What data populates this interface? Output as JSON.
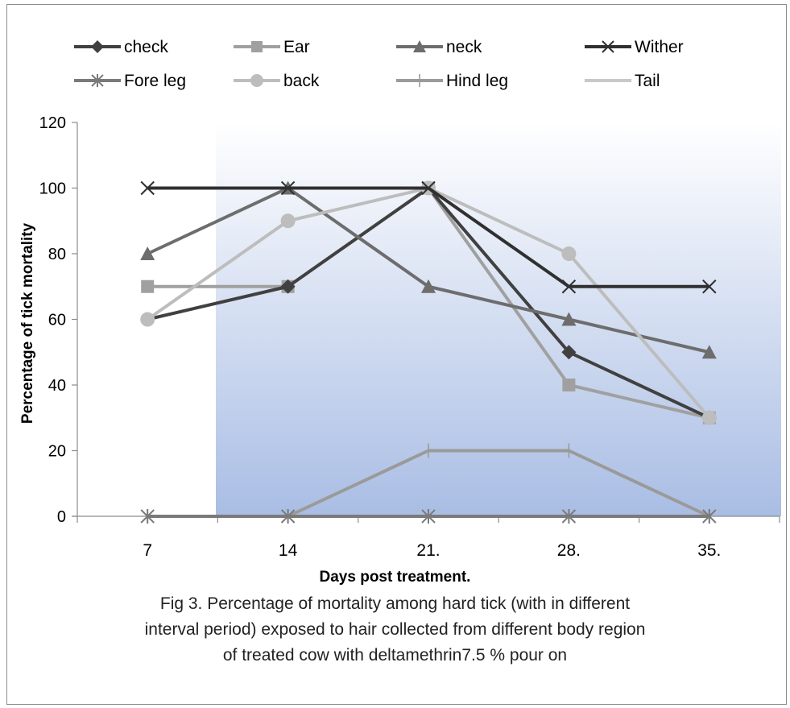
{
  "chart_data": {
    "type": "line",
    "title": "",
    "xlabel": "Days post treatment.",
    "ylabel": "Percentage of tick mortality",
    "categories": [
      "7",
      "14",
      "21.",
      "28.",
      "35."
    ],
    "ylim": [
      0,
      120
    ],
    "yticks": [
      0,
      20,
      40,
      60,
      80,
      100,
      120
    ],
    "legend_position": "top",
    "series": [
      {
        "name": "check",
        "values": [
          60,
          70,
          100,
          50,
          30
        ],
        "color": "#404040",
        "marker": "diamond"
      },
      {
        "name": "Ear",
        "values": [
          70,
          70,
          100,
          40,
          30
        ],
        "color": "#a0a0a0",
        "marker": "square"
      },
      {
        "name": "neck",
        "values": [
          80,
          100,
          70,
          60,
          50
        ],
        "color": "#6d6d6d",
        "marker": "triangle"
      },
      {
        "name": "Wither",
        "values": [
          100,
          100,
          100,
          70,
          70
        ],
        "color": "#303030",
        "marker": "x"
      },
      {
        "name": "Fore leg",
        "values": [
          0,
          0,
          0,
          0,
          0
        ],
        "color": "#7a7a7a",
        "marker": "star"
      },
      {
        "name": "back",
        "values": [
          60,
          90,
          100,
          80,
          30
        ],
        "color": "#bdbdbd",
        "marker": "circle"
      },
      {
        "name": "Hind leg",
        "values": [
          0,
          0,
          20,
          20,
          0
        ],
        "color": "#9a9a9a",
        "marker": "plus"
      },
      {
        "name": "Tail",
        "values": [
          0,
          0,
          20,
          20,
          0
        ],
        "color": "#c8c8c8",
        "marker": "none"
      }
    ],
    "plot_background": {
      "from": "#ffffff",
      "to": "#a9bde4"
    }
  },
  "caption": [
    "Fig 3. Percentage of mortality among hard tick (with in different",
    "interval period) exposed to hair collected from  different body region",
    "of treated cow with deltamethrin7.5 % pour on"
  ]
}
